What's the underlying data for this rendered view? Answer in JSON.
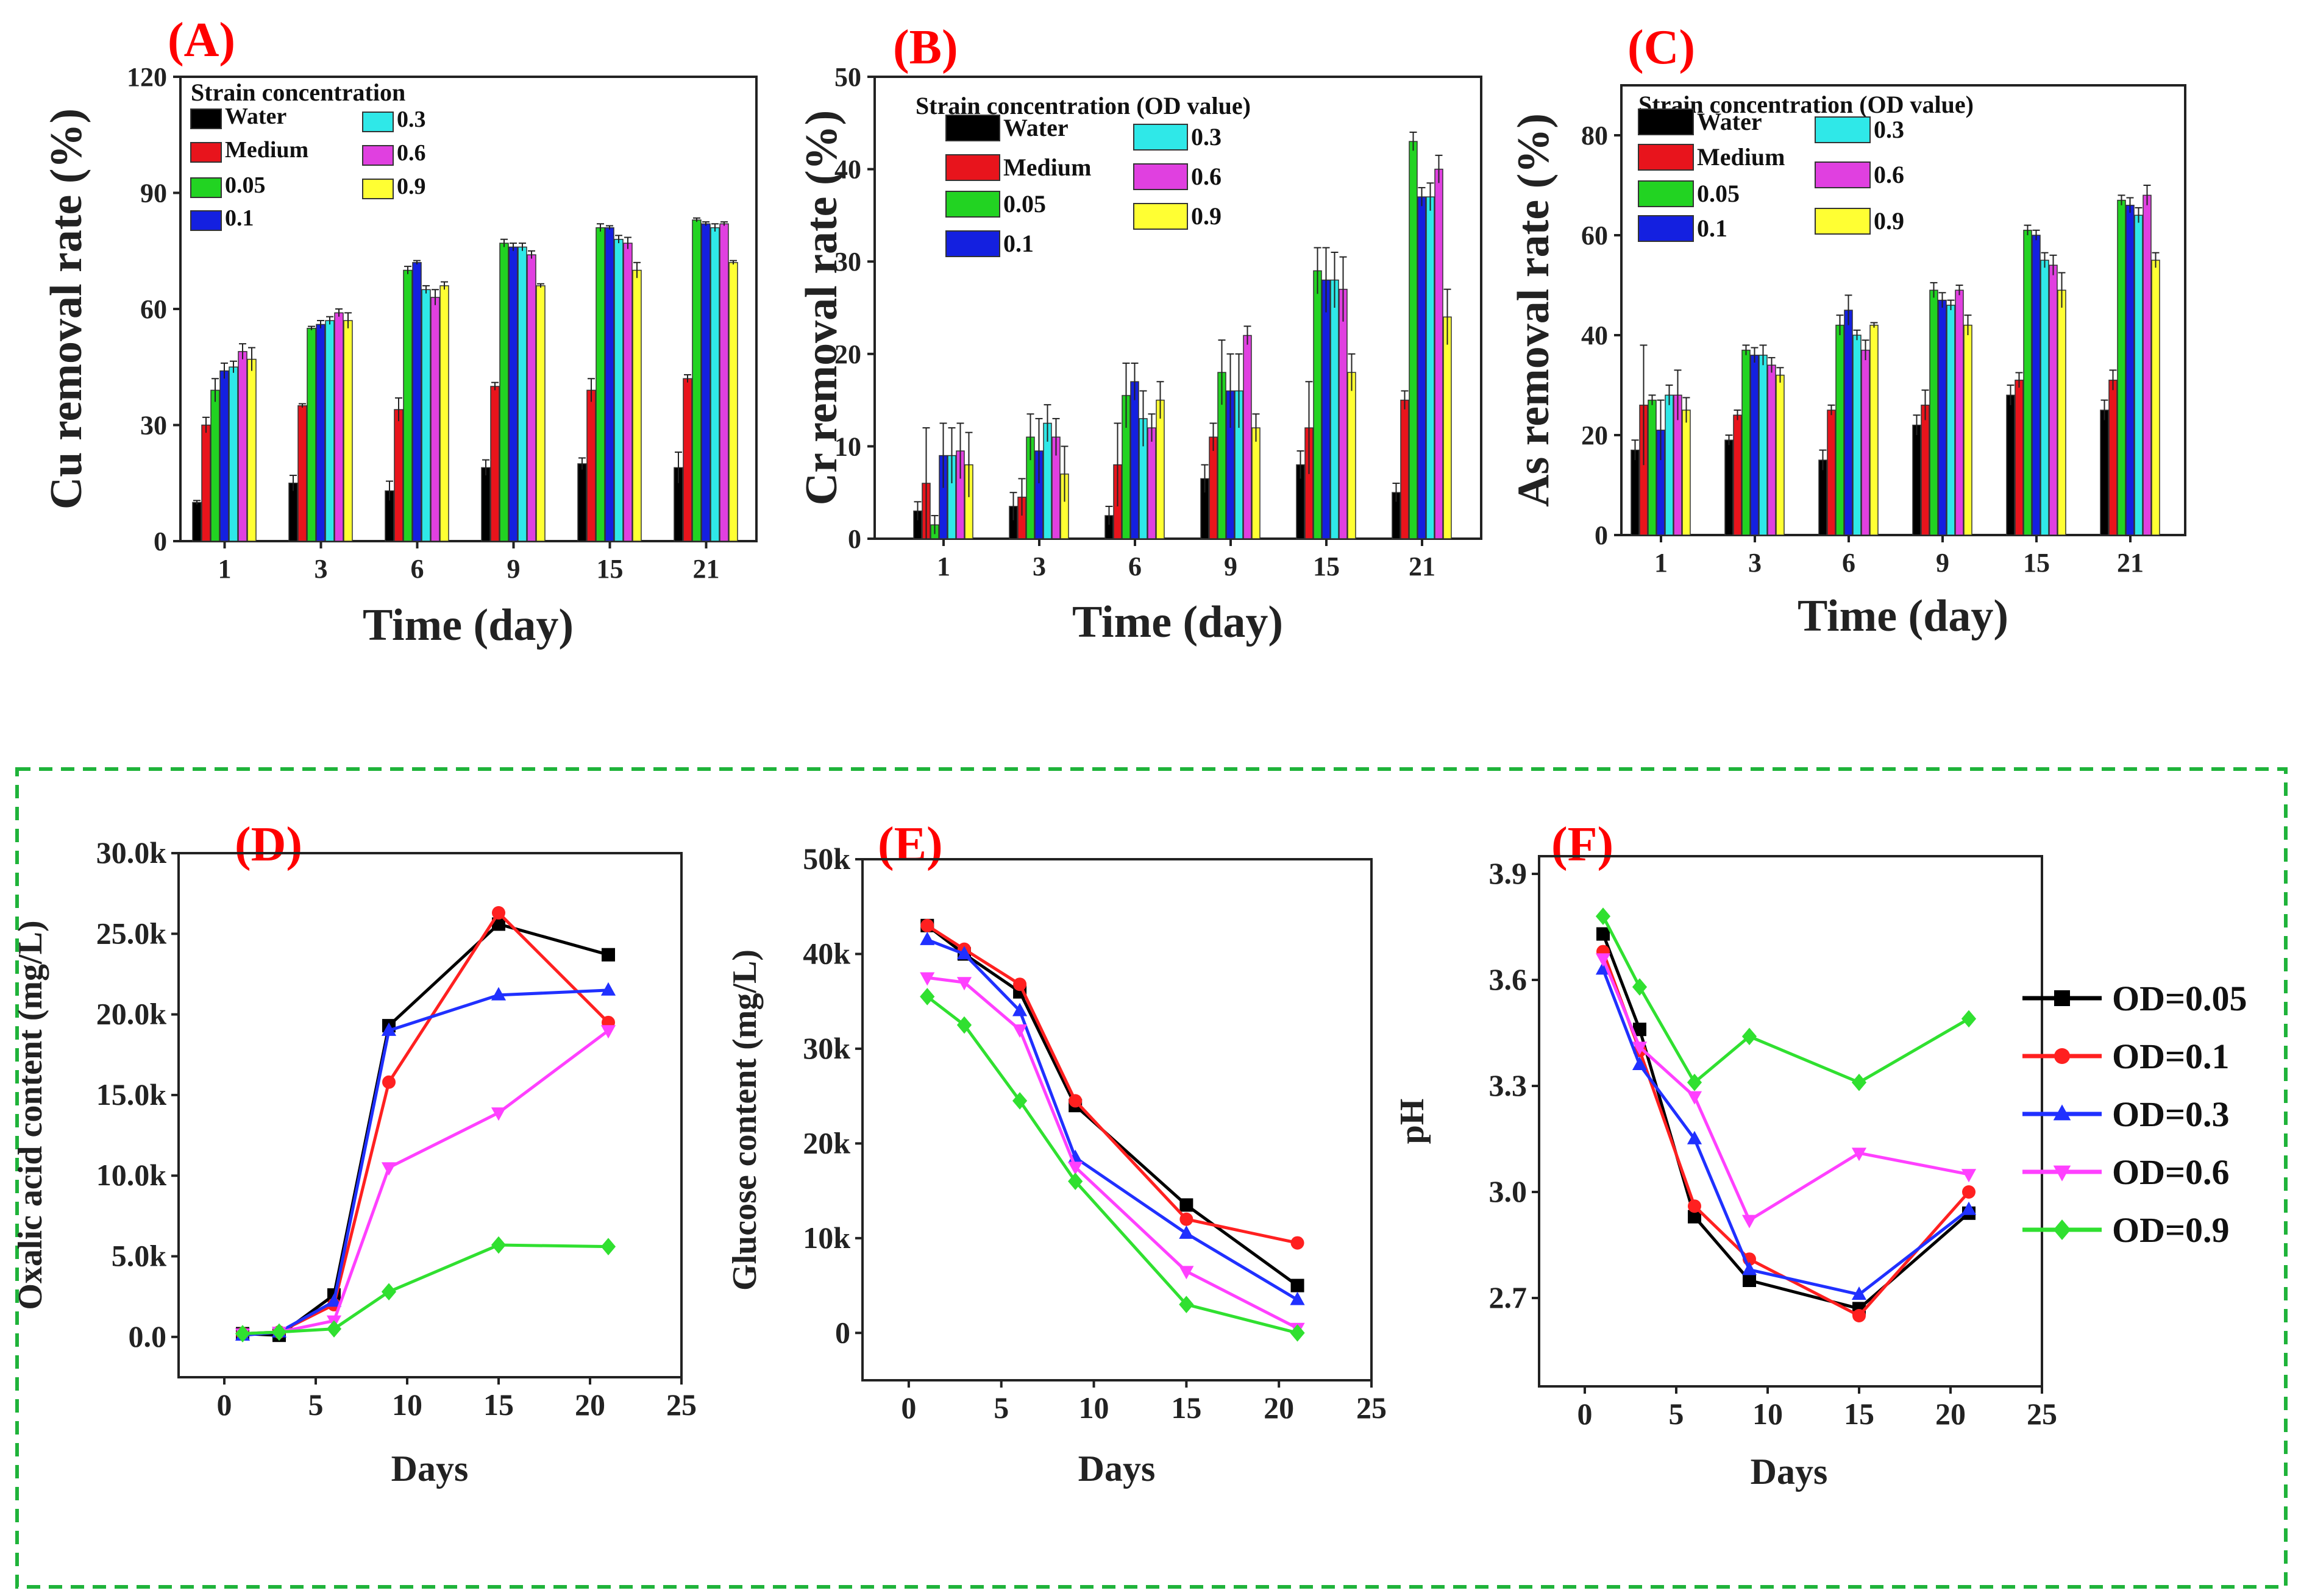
{
  "colors": {
    "panel_label": "#ff0000",
    "dashed_border": "#1fb33a",
    "bar_series": [
      "#000000",
      "#e8141c",
      "#22d322",
      "#1420e0",
      "#2fe8e8",
      "#e040e0",
      "#ffff33"
    ],
    "line_series": [
      "#000000",
      "#ff2020",
      "#2030ff",
      "#ff40ff",
      "#30e030"
    ]
  },
  "top_legend": {
    "title_a": "Strain concentration",
    "title_bc": "Strain concentration (OD value)",
    "items": [
      "Water",
      "Medium",
      "0.05",
      "0.1",
      "0.3",
      "0.6",
      "0.9"
    ]
  },
  "bottom_legend": {
    "items": [
      "OD=0.05",
      "OD=0.1",
      "OD=0.3",
      "OD=0.6",
      "OD=0.9"
    ],
    "markers": [
      "square",
      "circle",
      "triangle-up",
      "triangle-down",
      "diamond"
    ]
  },
  "chart_data": [
    {
      "panel": "(A)",
      "type": "bar",
      "title": "",
      "xlabel": "Time (day)",
      "ylabel": "Cu removal rate (%)",
      "categories": [
        "1",
        "3",
        "6",
        "9",
        "15",
        "21"
      ],
      "ylim": [
        0,
        120
      ],
      "yticks": [
        "0",
        "30",
        "60",
        "90",
        "120"
      ],
      "legend_title": "Strain concentration",
      "series": [
        {
          "name": "Water",
          "values": [
            10,
            15,
            13,
            19,
            20,
            19
          ],
          "errors": [
            0.5,
            2,
            2.5,
            2,
            1.5,
            4
          ]
        },
        {
          "name": "Medium",
          "values": [
            30,
            35,
            34,
            40,
            39,
            42
          ],
          "errors": [
            2,
            0.5,
            3,
            1,
            3,
            1
          ]
        },
        {
          "name": "0.05",
          "values": [
            39,
            55,
            70,
            77,
            81,
            83
          ],
          "errors": [
            3,
            0.5,
            1,
            1,
            1,
            0.5
          ]
        },
        {
          "name": "0.1",
          "values": [
            44,
            56,
            72,
            76,
            81,
            82
          ],
          "errors": [
            2,
            1,
            0.5,
            1,
            0.5,
            0.5
          ]
        },
        {
          "name": "0.3",
          "values": [
            45,
            57,
            65,
            76,
            78,
            81
          ],
          "errors": [
            1.5,
            1,
            1,
            1,
            1,
            1
          ]
        },
        {
          "name": "0.6",
          "values": [
            49,
            59,
            63,
            74,
            77,
            82
          ],
          "errors": [
            2,
            1,
            2,
            1,
            1.5,
            0.5
          ]
        },
        {
          "name": "0.9",
          "values": [
            47,
            57,
            66,
            66,
            70,
            72
          ],
          "errors": [
            3,
            2,
            1,
            0.5,
            2,
            0.5
          ]
        }
      ]
    },
    {
      "panel": "(B)",
      "type": "bar",
      "title": "",
      "xlabel": "Time (day)",
      "ylabel": "Cr removal rate (%)",
      "categories": [
        "1",
        "3",
        "6",
        "9",
        "15",
        "21"
      ],
      "ylim": [
        0,
        50
      ],
      "yticks": [
        "0",
        "10",
        "20",
        "30",
        "40",
        "50"
      ],
      "legend_title": "Strain concentration (OD value)",
      "series": [
        {
          "name": "Water",
          "values": [
            3,
            3.5,
            2.5,
            6.5,
            8,
            5
          ],
          "errors": [
            1,
            1.5,
            1,
            1.5,
            1.5,
            1
          ]
        },
        {
          "name": "Medium",
          "values": [
            6,
            4.5,
            8,
            11,
            12,
            15
          ],
          "errors": [
            6,
            2,
            4.5,
            1.5,
            5,
            1
          ]
        },
        {
          "name": "0.05",
          "values": [
            1.5,
            11,
            15.5,
            18,
            29,
            43
          ],
          "errors": [
            1,
            2.5,
            3.5,
            3.5,
            2.5,
            1
          ]
        },
        {
          "name": "0.1",
          "values": [
            9,
            9.5,
            17,
            16,
            28,
            37
          ],
          "errors": [
            3.5,
            3.5,
            2,
            4,
            3.5,
            1
          ]
        },
        {
          "name": "0.3",
          "values": [
            9,
            12.5,
            13,
            16,
            28,
            37
          ],
          "errors": [
            3,
            2,
            3,
            4,
            3,
            1.5
          ]
        },
        {
          "name": "0.6",
          "values": [
            9.5,
            11,
            12,
            22,
            27,
            40
          ],
          "errors": [
            3,
            2,
            1.5,
            1,
            3.5,
            1.5
          ]
        },
        {
          "name": "0.9",
          "values": [
            8,
            7,
            15,
            12,
            18,
            24
          ],
          "errors": [
            3.5,
            3,
            2,
            1.5,
            2,
            3
          ]
        }
      ]
    },
    {
      "panel": "(C)",
      "type": "bar",
      "title": "",
      "xlabel": "Time (day)",
      "ylabel": "As removal rate (%)",
      "categories": [
        "1",
        "3",
        "6",
        "9",
        "15",
        "21"
      ],
      "ylim": [
        0,
        90
      ],
      "yticks": [
        "0",
        "20",
        "40",
        "60",
        "80"
      ],
      "legend_title": "Strain concentration (OD value)",
      "series": [
        {
          "name": "Water",
          "values": [
            17,
            19,
            15,
            22,
            28,
            25
          ],
          "errors": [
            2,
            1,
            2,
            2,
            2,
            2
          ]
        },
        {
          "name": "Medium",
          "values": [
            26,
            24,
            25,
            26,
            31,
            31
          ],
          "errors": [
            12,
            1,
            1,
            3,
            1.5,
            2
          ]
        },
        {
          "name": "0.05",
          "values": [
            27,
            37,
            42,
            49,
            61,
            67
          ],
          "errors": [
            1,
            1,
            2,
            1.5,
            1,
            1
          ]
        },
        {
          "name": "0.1",
          "values": [
            21,
            36,
            45,
            47,
            60,
            66
          ],
          "errors": [
            6,
            1.5,
            3,
            1.5,
            1,
            1.5
          ]
        },
        {
          "name": "0.3",
          "values": [
            28,
            36,
            40,
            46,
            55,
            64
          ],
          "errors": [
            2,
            2,
            1,
            1,
            1.5,
            1.5
          ]
        },
        {
          "name": "0.6",
          "values": [
            28,
            34,
            37,
            49,
            54,
            68
          ],
          "errors": [
            5,
            1.5,
            2,
            1,
            2,
            2
          ]
        },
        {
          "name": "0.9",
          "values": [
            25,
            32,
            42,
            42,
            49,
            55
          ],
          "errors": [
            2.5,
            1.5,
            0.5,
            2,
            3.5,
            1.5
          ]
        }
      ]
    },
    {
      "panel": "(D)",
      "type": "line",
      "title": "",
      "xlabel": "Days",
      "ylabel": "Oxalic acid content (mg/L)",
      "xlim": [
        -2.5,
        25
      ],
      "xticks": [
        "0",
        "5",
        "10",
        "15",
        "20",
        "25"
      ],
      "ylim": [
        -2500,
        30000
      ],
      "yticks": [
        "0.0",
        "5.0k",
        "10.0k",
        "15.0k",
        "20.0k",
        "25.0k",
        "30.0k"
      ],
      "x": [
        1,
        3,
        6,
        9,
        15,
        21
      ],
      "series": [
        {
          "name": "OD=0.05",
          "values": [
            200,
            100,
            2600,
            19300,
            25600,
            23700
          ]
        },
        {
          "name": "OD=0.1",
          "values": [
            200,
            300,
            2000,
            15800,
            26300,
            19500
          ]
        },
        {
          "name": "OD=0.3",
          "values": [
            100,
            300,
            2200,
            19000,
            21200,
            21500
          ]
        },
        {
          "name": "OD=0.6",
          "values": [
            200,
            300,
            1000,
            10500,
            13900,
            19000
          ]
        },
        {
          "name": "OD=0.9",
          "values": [
            200,
            300,
            500,
            2800,
            5700,
            5600
          ]
        }
      ]
    },
    {
      "panel": "(E)",
      "type": "line",
      "title": "",
      "xlabel": "Days",
      "ylabel": "Glucose content (mg/L)",
      "xlim": [
        -2.5,
        25
      ],
      "xticks": [
        "0",
        "5",
        "10",
        "15",
        "20",
        "25"
      ],
      "ylim": [
        -5000,
        50000
      ],
      "yticks": [
        "0",
        "10k",
        "20k",
        "30k",
        "40k",
        "50k"
      ],
      "x": [
        1,
        3,
        6,
        9,
        15,
        21
      ],
      "series": [
        {
          "name": "OD=0.05",
          "values": [
            43000,
            40000,
            36000,
            24000,
            13500,
            5000
          ]
        },
        {
          "name": "OD=0.1",
          "values": [
            43000,
            40500,
            36800,
            24500,
            12000,
            9500
          ]
        },
        {
          "name": "OD=0.3",
          "values": [
            41500,
            40000,
            34000,
            18500,
            10500,
            3500
          ]
        },
        {
          "name": "OD=0.6",
          "values": [
            37500,
            37000,
            32000,
            17500,
            6500,
            500
          ]
        },
        {
          "name": "OD=0.9",
          "values": [
            35500,
            32500,
            24500,
            16000,
            3000,
            0
          ]
        }
      ]
    },
    {
      "panel": "(F)",
      "type": "line",
      "title": "",
      "xlabel": "Days",
      "ylabel": "pH",
      "xlim": [
        -2.5,
        25
      ],
      "xticks": [
        "0",
        "5",
        "10",
        "15",
        "20",
        "25"
      ],
      "ylim": [
        2.45,
        3.95
      ],
      "yticks": [
        "2.7",
        "3.0",
        "3.3",
        "3.6",
        "3.9"
      ],
      "x": [
        1,
        3,
        6,
        9,
        15,
        21
      ],
      "series": [
        {
          "name": "OD=0.05",
          "values": [
            3.73,
            3.46,
            2.93,
            2.75,
            2.67,
            2.94
          ]
        },
        {
          "name": "OD=0.1",
          "values": [
            3.68,
            3.4,
            2.96,
            2.81,
            2.65,
            3.0
          ]
        },
        {
          "name": "OD=0.3",
          "values": [
            3.63,
            3.36,
            3.15,
            2.78,
            2.71,
            2.95
          ]
        },
        {
          "name": "OD=0.6",
          "values": [
            3.66,
            3.41,
            3.27,
            2.92,
            3.11,
            3.05
          ]
        },
        {
          "name": "OD=0.9",
          "values": [
            3.78,
            3.58,
            3.31,
            3.44,
            3.31,
            3.49
          ]
        }
      ]
    }
  ]
}
